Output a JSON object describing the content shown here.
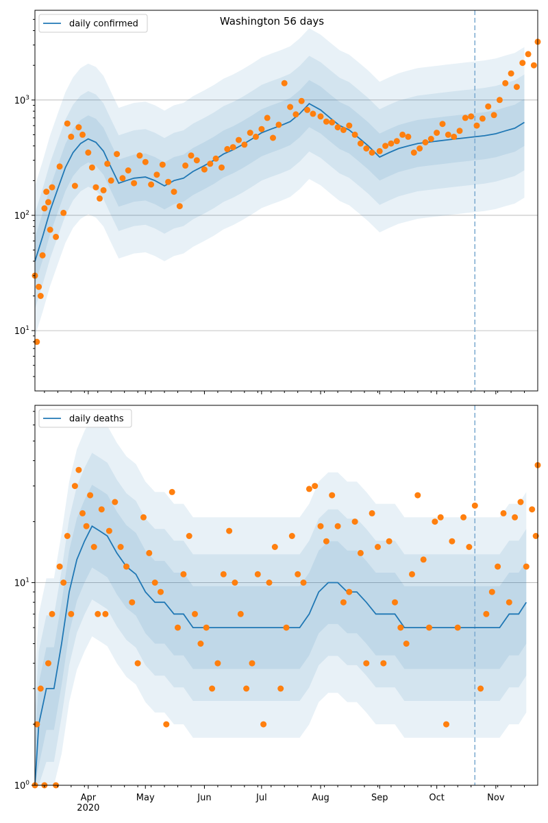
{
  "figure": {
    "title": "Washington 56 days",
    "x_year_label": "2020"
  },
  "colors": {
    "model_line": "#1f77b4",
    "band": "#1f77b4",
    "observed": "#ff7f0e",
    "grid": "#b0b0b0",
    "forecast_marker": "#7aa9cf"
  },
  "chart_data": [
    {
      "type": "line",
      "panel": "top",
      "title": "Washington 56 days",
      "yscale": "log",
      "ylim": [
        3,
        6000
      ],
      "yticks": [
        10,
        100,
        1000
      ],
      "ytick_labels": [
        "10^1",
        "10^2",
        "10^3"
      ],
      "xlim": [
        "2020-03-04",
        "2020-11-23"
      ],
      "xticks": [
        "2020-04-01",
        "2020-05-01",
        "2020-06-01",
        "2020-07-01",
        "2020-08-01",
        "2020-09-01",
        "2020-10-01",
        "2020-11-01"
      ],
      "xtick_labels": [
        "",
        "",
        "",
        "",
        "",
        "",
        "",
        ""
      ],
      "grid": "horizontal",
      "legend_position": "top-left",
      "forecast_start": "2020-10-21",
      "series": [
        {
          "name": "daily confirmed",
          "kind": "model",
          "x": [
            "2020-03-04",
            "2020-03-08",
            "2020-03-12",
            "2020-03-16",
            "2020-03-20",
            "2020-03-24",
            "2020-03-28",
            "2020-04-01",
            "2020-04-05",
            "2020-04-09",
            "2020-04-13",
            "2020-04-17",
            "2020-04-21",
            "2020-04-25",
            "2020-05-01",
            "2020-05-06",
            "2020-05-11",
            "2020-05-16",
            "2020-05-21",
            "2020-05-26",
            "2020-06-01",
            "2020-06-06",
            "2020-06-11",
            "2020-06-16",
            "2020-06-21",
            "2020-06-26",
            "2020-07-01",
            "2020-07-06",
            "2020-07-11",
            "2020-07-16",
            "2020-07-21",
            "2020-07-26",
            "2020-08-01",
            "2020-08-06",
            "2020-08-11",
            "2020-08-16",
            "2020-08-21",
            "2020-08-26",
            "2020-09-01",
            "2020-09-06",
            "2020-09-11",
            "2020-09-16",
            "2020-09-21",
            "2020-09-26",
            "2020-10-01",
            "2020-10-06",
            "2020-10-11",
            "2020-10-16",
            "2020-10-21",
            "2020-10-26",
            "2020-11-01",
            "2020-11-06",
            "2020-11-11",
            "2020-11-16"
          ],
          "y": [
            40,
            65,
            110,
            170,
            260,
            350,
            420,
            460,
            430,
            360,
            260,
            190,
            200,
            210,
            215,
            200,
            180,
            200,
            210,
            240,
            270,
            300,
            340,
            370,
            410,
            460,
            520,
            560,
            600,
            650,
            760,
            930,
            820,
            700,
            600,
            550,
            470,
            400,
            320,
            350,
            380,
            400,
            420,
            430,
            440,
            450,
            460,
            470,
            480,
            490,
            510,
            540,
            570,
            640
          ]
        },
        {
          "name": "",
          "kind": "observed",
          "x": [
            "2020-03-04",
            "2020-03-05",
            "2020-03-06",
            "2020-03-07",
            "2020-03-08",
            "2020-03-09",
            "2020-03-10",
            "2020-03-11",
            "2020-03-12",
            "2020-03-13",
            "2020-03-15",
            "2020-03-17",
            "2020-03-19",
            "2020-03-21",
            "2020-03-23",
            "2020-03-25",
            "2020-03-27",
            "2020-03-29",
            "2020-04-01",
            "2020-04-03",
            "2020-04-05",
            "2020-04-07",
            "2020-04-09",
            "2020-04-11",
            "2020-04-13",
            "2020-04-16",
            "2020-04-19",
            "2020-04-22",
            "2020-04-25",
            "2020-04-28",
            "2020-05-01",
            "2020-05-04",
            "2020-05-07",
            "2020-05-10",
            "2020-05-13",
            "2020-05-16",
            "2020-05-19",
            "2020-05-22",
            "2020-05-25",
            "2020-05-28",
            "2020-06-01",
            "2020-06-04",
            "2020-06-07",
            "2020-06-10",
            "2020-06-13",
            "2020-06-16",
            "2020-06-19",
            "2020-06-22",
            "2020-06-25",
            "2020-06-28",
            "2020-07-01",
            "2020-07-04",
            "2020-07-07",
            "2020-07-10",
            "2020-07-13",
            "2020-07-16",
            "2020-07-19",
            "2020-07-22",
            "2020-07-25",
            "2020-07-28",
            "2020-08-01",
            "2020-08-04",
            "2020-08-07",
            "2020-08-10",
            "2020-08-13",
            "2020-08-16",
            "2020-08-19",
            "2020-08-22",
            "2020-08-25",
            "2020-08-28",
            "2020-09-01",
            "2020-09-04",
            "2020-09-07",
            "2020-09-10",
            "2020-09-13",
            "2020-09-16",
            "2020-09-19",
            "2020-09-22",
            "2020-09-25",
            "2020-09-28",
            "2020-10-01",
            "2020-10-04",
            "2020-10-07",
            "2020-10-10",
            "2020-10-13",
            "2020-10-16",
            "2020-10-19",
            "2020-10-22",
            "2020-10-25",
            "2020-10-28",
            "2020-10-31",
            "2020-11-03",
            "2020-11-06",
            "2020-11-09",
            "2020-11-12",
            "2020-11-15",
            "2020-11-18",
            "2020-11-21",
            "2020-11-23"
          ],
          "y": [
            30,
            8,
            24,
            20,
            45,
            115,
            160,
            130,
            75,
            175,
            65,
            265,
            105,
            625,
            480,
            180,
            580,
            500,
            350,
            260,
            175,
            140,
            165,
            280,
            200,
            340,
            210,
            245,
            190,
            330,
            290,
            185,
            225,
            275,
            195,
            160,
            120,
            270,
            330,
            300,
            250,
            280,
            310,
            260,
            375,
            390,
            450,
            410,
            520,
            480,
            560,
            700,
            470,
            610,
            1400,
            870,
            750,
            980,
            820,
            760,
            720,
            650,
            640,
            580,
            550,
            600,
            500,
            420,
            380,
            350,
            360,
            400,
            420,
            440,
            500,
            480,
            350,
            380,
            430,
            460,
            520,
            620,
            500,
            480,
            540,
            700,
            720,
            600,
            690,
            880,
            740,
            1000,
            1400,
            1700,
            1300,
            2100,
            2500,
            2000,
            3200
          ]
        }
      ]
    },
    {
      "type": "line",
      "panel": "bottom",
      "yscale": "log",
      "ylim": [
        1,
        75
      ],
      "yticks": [
        1,
        10
      ],
      "ytick_labels": [
        "10^0",
        "10^1"
      ],
      "xlim": [
        "2020-03-04",
        "2020-11-23"
      ],
      "xticks": [
        "2020-04-01",
        "2020-05-01",
        "2020-06-01",
        "2020-07-01",
        "2020-08-01",
        "2020-09-01",
        "2020-10-01",
        "2020-11-01"
      ],
      "xtick_labels": [
        "Apr",
        "May",
        "Jun",
        "Jul",
        "Aug",
        "Sep",
        "Oct",
        "Nov"
      ],
      "grid": "horizontal",
      "legend_position": "top-left",
      "forecast_start": "2020-10-21",
      "series": [
        {
          "name": "daily deaths",
          "kind": "model",
          "x": [
            "2020-03-04",
            "2020-03-06",
            "2020-03-10",
            "2020-03-14",
            "2020-03-18",
            "2020-03-22",
            "2020-03-26",
            "2020-03-30",
            "2020-04-03",
            "2020-04-07",
            "2020-04-11",
            "2020-04-16",
            "2020-04-21",
            "2020-04-26",
            "2020-05-01",
            "2020-05-06",
            "2020-05-11",
            "2020-05-16",
            "2020-05-21",
            "2020-05-26",
            "2020-06-01",
            "2020-06-06",
            "2020-06-11",
            "2020-06-16",
            "2020-06-21",
            "2020-06-26",
            "2020-07-01",
            "2020-07-06",
            "2020-07-11",
            "2020-07-16",
            "2020-07-21",
            "2020-07-26",
            "2020-07-31",
            "2020-08-05",
            "2020-08-10",
            "2020-08-15",
            "2020-08-20",
            "2020-08-25",
            "2020-08-30",
            "2020-09-04",
            "2020-09-09",
            "2020-09-14",
            "2020-09-19",
            "2020-09-24",
            "2020-09-29",
            "2020-10-04",
            "2020-10-09",
            "2020-10-14",
            "2020-10-19",
            "2020-10-24",
            "2020-10-29",
            "2020-11-03",
            "2020-11-08",
            "2020-11-13",
            "2020-11-17"
          ],
          "y": [
            1,
            2,
            3,
            3,
            5,
            9,
            13,
            16,
            19,
            18,
            17,
            14,
            12,
            11,
            9,
            8,
            8,
            7,
            7,
            6,
            6,
            6,
            6,
            6,
            6,
            6,
            6,
            6,
            6,
            6,
            6,
            7,
            9,
            10,
            10,
            9,
            9,
            8,
            7,
            7,
            7,
            6,
            6,
            6,
            6,
            6,
            6,
            6,
            6,
            6,
            6,
            6,
            7,
            7,
            8
          ]
        },
        {
          "name": "",
          "kind": "observed",
          "x": [
            "2020-03-04",
            "2020-03-05",
            "2020-03-07",
            "2020-03-09",
            "2020-03-11",
            "2020-03-13",
            "2020-03-15",
            "2020-03-17",
            "2020-03-19",
            "2020-03-21",
            "2020-03-23",
            "2020-03-25",
            "2020-03-27",
            "2020-03-29",
            "2020-03-31",
            "2020-04-02",
            "2020-04-04",
            "2020-04-06",
            "2020-04-08",
            "2020-04-10",
            "2020-04-12",
            "2020-04-15",
            "2020-04-18",
            "2020-04-21",
            "2020-04-24",
            "2020-04-27",
            "2020-04-30",
            "2020-05-03",
            "2020-05-06",
            "2020-05-09",
            "2020-05-12",
            "2020-05-15",
            "2020-05-18",
            "2020-05-21",
            "2020-05-24",
            "2020-05-27",
            "2020-05-30",
            "2020-06-02",
            "2020-06-05",
            "2020-06-08",
            "2020-06-11",
            "2020-06-14",
            "2020-06-17",
            "2020-06-20",
            "2020-06-23",
            "2020-06-26",
            "2020-06-29",
            "2020-07-02",
            "2020-07-05",
            "2020-07-08",
            "2020-07-11",
            "2020-07-14",
            "2020-07-17",
            "2020-07-20",
            "2020-07-23",
            "2020-07-26",
            "2020-07-29",
            "2020-08-01",
            "2020-08-04",
            "2020-08-07",
            "2020-08-10",
            "2020-08-13",
            "2020-08-16",
            "2020-08-19",
            "2020-08-22",
            "2020-08-25",
            "2020-08-28",
            "2020-08-31",
            "2020-09-03",
            "2020-09-06",
            "2020-09-09",
            "2020-09-12",
            "2020-09-15",
            "2020-09-18",
            "2020-09-21",
            "2020-09-24",
            "2020-09-27",
            "2020-09-30",
            "2020-10-03",
            "2020-10-06",
            "2020-10-09",
            "2020-10-12",
            "2020-10-15",
            "2020-10-18",
            "2020-10-21",
            "2020-10-24",
            "2020-10-27",
            "2020-10-30",
            "2020-11-02",
            "2020-11-05",
            "2020-11-08",
            "2020-11-11",
            "2020-11-14",
            "2020-11-17",
            "2020-11-20",
            "2020-11-22",
            "2020-11-23"
          ],
          "y": [
            1,
            2,
            3,
            1,
            4,
            7,
            1,
            12,
            10,
            17,
            7,
            30,
            36,
            22,
            19,
            27,
            15,
            7,
            23,
            7,
            18,
            25,
            15,
            12,
            8,
            4,
            21,
            14,
            10,
            9,
            2,
            28,
            6,
            11,
            17,
            7,
            5,
            6,
            3,
            4,
            11,
            18,
            10,
            7,
            3,
            4,
            11,
            2,
            10,
            15,
            3,
            6,
            17,
            11,
            10,
            29,
            30,
            19,
            16,
            27,
            19,
            8,
            9,
            20,
            14,
            4,
            22,
            15,
            4,
            16,
            8,
            6,
            5,
            11,
            27,
            13,
            6,
            20,
            21,
            2,
            16,
            6,
            21,
            15,
            24,
            3,
            7,
            9,
            12,
            22,
            8,
            21,
            25,
            12,
            23,
            17,
            38
          ]
        }
      ]
    }
  ]
}
